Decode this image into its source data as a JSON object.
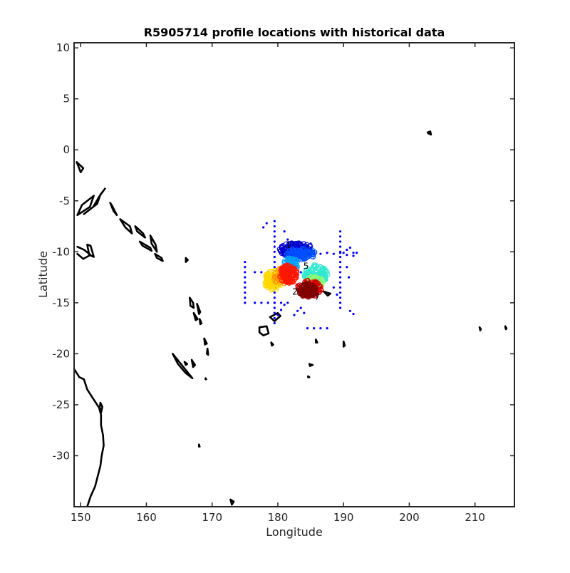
{
  "chart_data": {
    "type": "scatter",
    "title": "R5905714 profile locations with historical data",
    "xlabel": "Longitude",
    "ylabel": "Latitude",
    "xlim": [
      149,
      216
    ],
    "ylim": [
      -35,
      10.5
    ],
    "xticks": [
      150,
      160,
      170,
      180,
      190,
      200,
      210
    ],
    "yticks": [
      10,
      5,
      0,
      -5,
      -10,
      -15,
      -20,
      -25,
      -30
    ],
    "grid": false,
    "legend": "none",
    "colors": {
      "historical": "#0000ff",
      "coastline": "#000000",
      "profile_colormap": [
        "#00008f",
        "#0000ff",
        "#0080ff",
        "#00ffff",
        "#80ff80",
        "#ffff00",
        "#ff8000",
        "#ff0000",
        "#800000"
      ]
    },
    "historical_points": {
      "color": "#0000ff",
      "x": [
        179.5,
        179.5,
        179.5,
        179.5,
        179.5,
        179.5,
        179.5,
        179.5,
        179.5,
        179.5,
        179.5,
        179.5,
        179.5,
        179.5,
        179.5,
        179.5,
        179.5,
        179.5,
        179.5,
        179.5,
        179.5,
        175,
        175,
        175,
        175,
        175,
        175,
        175,
        175,
        175,
        176.5,
        177.5,
        178.5,
        179.5,
        180.5,
        181.5,
        176.5,
        177.5,
        178.5,
        179.5,
        180.5,
        181.5,
        182.5,
        183.5,
        189.5,
        189.5,
        189.5,
        189.5,
        189.5,
        189.5,
        189.5,
        189.5,
        189.5,
        189.5,
        189.5,
        189.5,
        189.5,
        189.5,
        189.5,
        189.5,
        183.5,
        184.5,
        185.5,
        186.5,
        187.5,
        188.5,
        189.5,
        190.5,
        191.5,
        190,
        190.5,
        191,
        191.5,
        192,
        184.5,
        185.5,
        186.5,
        187.5,
        183,
        183.5,
        184,
        182.5,
        181,
        180.5,
        180,
        181.5,
        181.5,
        188.5,
        189,
        191,
        190.8,
        190.5,
        191.5,
        178.3,
        177.8,
        181,
        185
      ],
      "y": [
        -7,
        -7.5,
        -8,
        -8.5,
        -9,
        -9.5,
        -10,
        -10.5,
        -11,
        -11.5,
        -12,
        -12.5,
        -13,
        -13.5,
        -14,
        -14.5,
        -15,
        -15.5,
        -16,
        -16.5,
        -17,
        -11,
        -11.5,
        -12,
        -12.5,
        -13,
        -13.5,
        -14,
        -14.5,
        -15,
        -15,
        -15,
        -15,
        -15,
        -15,
        -15,
        -12,
        -12,
        -12,
        -12,
        -12,
        -12,
        -12,
        -12,
        -8,
        -8.5,
        -9,
        -9.5,
        -10,
        -10.5,
        -11,
        -11.5,
        -12,
        -12.5,
        -13,
        -13.5,
        -14,
        -14.5,
        -15,
        -15.5,
        -10.2,
        -10.2,
        -10.1,
        -10.2,
        -10.1,
        -10.2,
        -10.1,
        -10.3,
        -10.1,
        -10.1,
        -9.8,
        -9.6,
        -10.4,
        -10.1,
        -17.5,
        -17.5,
        -17.5,
        -17.5,
        -15.8,
        -15.5,
        -16,
        -16.2,
        -15.2,
        -15.7,
        -16.2,
        -8.8,
        -9.3,
        -13.5,
        -14.2,
        -15.8,
        -12.5,
        -11.5,
        -16.1,
        -7.2,
        -7.6,
        -8,
        -9.2
      ]
    },
    "profile_clusters": [
      {
        "color": "#0000cd",
        "cx": 182.8,
        "cy": -9.8,
        "rx": 2.6,
        "ry": 0.7,
        "n": 140
      },
      {
        "color": "#0050ff",
        "cx": 183.5,
        "cy": -10.2,
        "rx": 2.2,
        "ry": 0.6,
        "n": 80
      },
      {
        "color": "#00a0ff",
        "cx": 182.0,
        "cy": -11.2,
        "rx": 1.2,
        "ry": 0.6,
        "n": 70
      },
      {
        "color": "#30e8d0",
        "cx": 185.8,
        "cy": -12.2,
        "rx": 1.8,
        "ry": 1.0,
        "n": 110
      },
      {
        "color": "#90ff70",
        "cx": 185.5,
        "cy": -13.0,
        "rx": 1.5,
        "ry": 0.6,
        "n": 50
      },
      {
        "color": "#ffd800",
        "cx": 179.3,
        "cy": -12.8,
        "rx": 1.4,
        "ry": 1.0,
        "n": 110
      },
      {
        "color": "#ff9000",
        "cx": 180.5,
        "cy": -12.4,
        "rx": 1.2,
        "ry": 0.8,
        "n": 60
      },
      {
        "color": "#ff1800",
        "cx": 181.6,
        "cy": -12.2,
        "rx": 1.4,
        "ry": 0.9,
        "n": 140
      },
      {
        "color": "#d00000",
        "cx": 184.8,
        "cy": -13.6,
        "rx": 1.9,
        "ry": 0.8,
        "n": 110
      },
      {
        "color": "#800000",
        "cx": 184.5,
        "cy": -13.8,
        "rx": 1.3,
        "ry": 0.7,
        "n": 110
      }
    ],
    "profile_labels": [
      {
        "text": "1",
        "x": 181.6,
        "y": -9.6
      },
      {
        "text": "5",
        "x": 184.3,
        "y": -11.7
      },
      {
        "text": "2",
        "x": 182.6,
        "y": -14.2
      },
      {
        "text": "7",
        "x": 186.0,
        "y": -14.7
      }
    ],
    "coastlines": [
      [
        [
          149.4,
          -1.2
        ],
        [
          150.4,
          -1.8
        ],
        [
          150.0,
          -2.2
        ],
        [
          149.4,
          -1.2
        ]
      ],
      [
        [
          149.5,
          -6.4
        ],
        [
          151.4,
          -5.6
        ],
        [
          152.0,
          -4.5
        ],
        [
          150.2,
          -5.4
        ],
        [
          149.5,
          -6.4
        ]
      ],
      [
        [
          150.5,
          -6.3
        ],
        [
          152.5,
          -5.3
        ],
        [
          153.0,
          -4.4
        ],
        [
          153.7,
          -3.8
        ],
        [
          152.8,
          -4.6
        ],
        [
          151.9,
          -5.6
        ],
        [
          150.5,
          -6.3
        ]
      ],
      [
        [
          149.5,
          -9.5
        ],
        [
          150.5,
          -9.8
        ],
        [
          151.5,
          -10.3
        ],
        [
          150.4,
          -10.7
        ],
        [
          149.5,
          -10.2
        ]
      ],
      [
        [
          151.0,
          -9.3
        ],
        [
          151.3,
          -10.3
        ],
        [
          152.0,
          -10.5
        ],
        [
          151.5,
          -9.4
        ],
        [
          151.0,
          -9.3
        ]
      ],
      [
        [
          154.5,
          -5.2
        ],
        [
          155.0,
          -6.0
        ],
        [
          155.5,
          -6.4
        ],
        [
          154.8,
          -5.5
        ],
        [
          154.5,
          -5.2
        ]
      ],
      [
        [
          156.0,
          -6.8
        ],
        [
          157.5,
          -7.5
        ],
        [
          157.8,
          -8.2
        ],
        [
          156.8,
          -7.6
        ],
        [
          156.0,
          -6.8
        ]
      ],
      [
        [
          158.3,
          -7.5
        ],
        [
          159.5,
          -8.2
        ],
        [
          159.8,
          -8.6
        ],
        [
          158.6,
          -8.0
        ],
        [
          158.3,
          -7.5
        ]
      ],
      [
        [
          159.0,
          -9.0
        ],
        [
          160.6,
          -9.6
        ],
        [
          160.8,
          -9.9
        ],
        [
          159.4,
          -9.4
        ],
        [
          159.0,
          -9.0
        ]
      ],
      [
        [
          160.6,
          -8.4
        ],
        [
          161.4,
          -9.3
        ],
        [
          161.6,
          -10.0
        ],
        [
          160.8,
          -9.2
        ],
        [
          160.6,
          -8.4
        ]
      ],
      [
        [
          161.3,
          -10.2
        ],
        [
          162.3,
          -10.6
        ],
        [
          162.5,
          -10.9
        ],
        [
          161.6,
          -10.6
        ],
        [
          161.3,
          -10.2
        ]
      ],
      [
        [
          166.0,
          -10.6
        ],
        [
          166.3,
          -10.8
        ],
        [
          166.0,
          -11.0
        ],
        [
          166.0,
          -10.6
        ]
      ],
      [
        [
          166.6,
          -14.5
        ],
        [
          167.1,
          -15.0
        ],
        [
          167.2,
          -15.5
        ],
        [
          166.7,
          -15.3
        ],
        [
          166.6,
          -14.5
        ]
      ],
      [
        [
          167.7,
          -15.1
        ],
        [
          168.2,
          -15.9
        ],
        [
          168.0,
          -16.1
        ],
        [
          167.7,
          -15.1
        ]
      ],
      [
        [
          167.2,
          -16.0
        ],
        [
          167.8,
          -16.6
        ],
        [
          167.5,
          -16.7
        ],
        [
          167.2,
          -16.0
        ]
      ],
      [
        [
          168.1,
          -16.6
        ],
        [
          168.4,
          -17.0
        ],
        [
          168.2,
          -17.1
        ],
        [
          168.1,
          -16.6
        ]
      ],
      [
        [
          168.8,
          -18.5
        ],
        [
          169.2,
          -19.0
        ],
        [
          168.9,
          -19.1
        ],
        [
          168.8,
          -18.5
        ]
      ],
      [
        [
          169.3,
          -19.5
        ],
        [
          169.4,
          -20.1
        ],
        [
          169.2,
          -20.0
        ],
        [
          169.3,
          -19.5
        ]
      ],
      [
        [
          164.0,
          -20.0
        ],
        [
          165.5,
          -21.2
        ],
        [
          166.5,
          -22.0
        ],
        [
          167.0,
          -22.4
        ],
        [
          166.0,
          -21.9
        ],
        [
          164.8,
          -21.0
        ],
        [
          164.0,
          -20.0
        ]
      ],
      [
        [
          166.9,
          -20.6
        ],
        [
          167.4,
          -21.1
        ],
        [
          167.1,
          -21.3
        ],
        [
          166.9,
          -20.6
        ]
      ],
      [
        [
          165.8,
          -20.8
        ],
        [
          166.2,
          -21.0
        ],
        [
          166.0,
          -21.1
        ],
        [
          165.8,
          -20.8
        ]
      ],
      [
        [
          177.2,
          -17.4
        ],
        [
          178.3,
          -17.3
        ],
        [
          178.6,
          -18.0
        ],
        [
          177.8,
          -18.2
        ],
        [
          177.2,
          -17.9
        ],
        [
          177.2,
          -17.4
        ]
      ],
      [
        [
          178.8,
          -16.4
        ],
        [
          180.0,
          -16.0
        ],
        [
          180.4,
          -16.3
        ],
        [
          179.5,
          -16.8
        ],
        [
          178.8,
          -16.4
        ]
      ],
      [
        [
          179.0,
          -18.9
        ],
        [
          179.3,
          -19.1
        ],
        [
          179.1,
          -19.2
        ],
        [
          179.0,
          -18.9
        ]
      ],
      [
        [
          183.7,
          -13.9
        ],
        [
          185.0,
          -13.6
        ],
        [
          185.2,
          -13.9
        ],
        [
          184.2,
          -14.1
        ],
        [
          183.7,
          -13.9
        ]
      ],
      [
        [
          185.6,
          -14.0
        ],
        [
          186.0,
          -14.2
        ],
        [
          185.8,
          -14.3
        ],
        [
          185.6,
          -14.0
        ]
      ],
      [
        [
          187.0,
          -13.9
        ],
        [
          188.0,
          -14.1
        ],
        [
          187.6,
          -14.3
        ],
        [
          187.0,
          -13.9
        ]
      ],
      [
        [
          185.8,
          -18.6
        ],
        [
          186.0,
          -18.9
        ],
        [
          185.8,
          -18.9
        ],
        [
          185.8,
          -18.6
        ]
      ],
      [
        [
          190.0,
          -18.8
        ],
        [
          190.2,
          -19.2
        ],
        [
          190.0,
          -19.3
        ],
        [
          190.0,
          -18.8
        ]
      ],
      [
        [
          184.8,
          -21.0
        ],
        [
          185.3,
          -21.1
        ],
        [
          184.9,
          -21.2
        ],
        [
          184.8,
          -21.0
        ]
      ],
      [
        [
          184.6,
          -22.2
        ],
        [
          184.8,
          -22.3
        ],
        [
          184.6,
          -22.3
        ],
        [
          184.6,
          -22.2
        ]
      ],
      [
        [
          202.8,
          1.7
        ],
        [
          203.2,
          1.8
        ],
        [
          203.3,
          1.5
        ],
        [
          202.9,
          1.6
        ],
        [
          202.8,
          1.7
        ]
      ],
      [
        [
          210.7,
          -17.4
        ],
        [
          210.9,
          -17.6
        ],
        [
          210.8,
          -17.7
        ],
        [
          210.7,
          -17.4
        ]
      ],
      [
        [
          214.6,
          -17.3
        ],
        [
          214.8,
          -17.5
        ],
        [
          214.7,
          -17.6
        ],
        [
          214.6,
          -17.3
        ]
      ],
      [
        [
          168.0,
          -28.9
        ],
        [
          168.1,
          -29.1
        ],
        [
          168.0,
          -29.1
        ],
        [
          168.0,
          -28.9
        ]
      ],
      [
        [
          169.0,
          -22.4
        ],
        [
          169.1,
          -22.5
        ],
        [
          169.0,
          -22.5
        ],
        [
          169.0,
          -22.4
        ]
      ],
      [
        [
          172.8,
          -34.3
        ],
        [
          173.3,
          -34.5
        ],
        [
          173.0,
          -34.8
        ],
        [
          172.8,
          -34.3
        ]
      ],
      [
        [
          149.0,
          -21.5
        ],
        [
          149.8,
          -22.3
        ],
        [
          150.5,
          -22.5
        ],
        [
          151.0,
          -23.5
        ],
        [
          152.0,
          -24.5
        ],
        [
          152.8,
          -25.3
        ],
        [
          153.1,
          -26.0
        ],
        [
          153.1,
          -27.0
        ],
        [
          153.4,
          -28.0
        ],
        [
          153.5,
          -29.0
        ],
        [
          153.2,
          -30.0
        ],
        [
          153.0,
          -31.0
        ],
        [
          152.6,
          -32.0
        ],
        [
          152.2,
          -33.0
        ],
        [
          151.5,
          -34.0
        ],
        [
          151.0,
          -35.0
        ]
      ],
      [
        [
          153.0,
          -24.8
        ],
        [
          153.3,
          -25.2
        ],
        [
          153.1,
          -25.8
        ],
        [
          152.9,
          -25.3
        ],
        [
          153.0,
          -24.8
        ]
      ]
    ]
  }
}
